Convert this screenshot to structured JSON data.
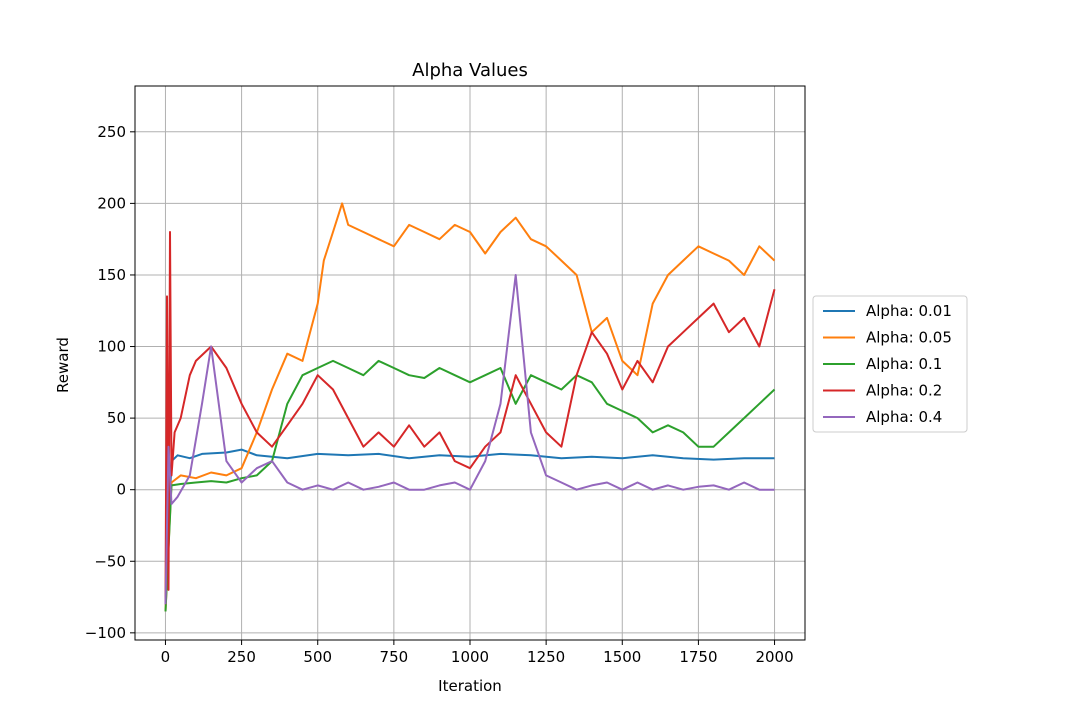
{
  "chart_data": {
    "type": "line",
    "title": "Alpha Values",
    "xlabel": "Iteration",
    "ylabel": "Reward",
    "xlim": [
      -100,
      2100
    ],
    "ylim": [
      -105,
      282
    ],
    "xticks": [
      0,
      250,
      500,
      750,
      1000,
      1250,
      1500,
      1750,
      2000
    ],
    "yticks": [
      -100,
      -50,
      0,
      50,
      100,
      150,
      200,
      250
    ],
    "ytick_labels": [
      "−100",
      "−50",
      "0",
      "50",
      "100",
      "150",
      "200",
      "250"
    ],
    "grid": true,
    "legend_position": "center-right outside",
    "series": [
      {
        "name": "Alpha: 0.01",
        "color": "#1f77b4",
        "x": [
          0,
          20,
          40,
          80,
          120,
          200,
          250,
          300,
          400,
          500,
          600,
          700,
          800,
          900,
          1000,
          1100,
          1200,
          1300,
          1400,
          1500,
          1600,
          1700,
          1800,
          1900,
          2000
        ],
        "y": [
          -80,
          20,
          24,
          22,
          25,
          26,
          28,
          24,
          22,
          25,
          24,
          25,
          22,
          24,
          23,
          25,
          24,
          22,
          23,
          22,
          24,
          22,
          21,
          22,
          22
        ]
      },
      {
        "name": "Alpha: 0.05",
        "color": "#ff7f0e",
        "x": [
          0,
          20,
          50,
          100,
          150,
          200,
          250,
          300,
          350,
          400,
          450,
          500,
          520,
          550,
          580,
          600,
          650,
          700,
          750,
          800,
          850,
          900,
          950,
          1000,
          1050,
          1100,
          1150,
          1200,
          1250,
          1300,
          1350,
          1400,
          1450,
          1500,
          1550,
          1600,
          1650,
          1700,
          1750,
          1800,
          1850,
          1900,
          1950,
          2000
        ],
        "y": [
          -85,
          5,
          10,
          8,
          12,
          10,
          15,
          40,
          70,
          95,
          90,
          130,
          160,
          180,
          200,
          185,
          180,
          175,
          170,
          185,
          180,
          175,
          185,
          180,
          165,
          180,
          190,
          175,
          170,
          160,
          150,
          110,
          120,
          90,
          80,
          130,
          150,
          160,
          170,
          165,
          160,
          150,
          170,
          160
        ]
      },
      {
        "name": "Alpha: 0.1",
        "color": "#2ca02c",
        "x": [
          0,
          20,
          50,
          100,
          150,
          200,
          250,
          300,
          350,
          400,
          450,
          500,
          550,
          600,
          650,
          700,
          750,
          800,
          850,
          900,
          950,
          1000,
          1050,
          1100,
          1150,
          1200,
          1250,
          1300,
          1350,
          1400,
          1450,
          1500,
          1550,
          1600,
          1650,
          1700,
          1750,
          1800,
          1850,
          1900,
          1950,
          2000
        ],
        "y": [
          -85,
          3,
          4,
          5,
          6,
          5,
          8,
          10,
          20,
          60,
          80,
          85,
          90,
          85,
          80,
          90,
          85,
          80,
          78,
          85,
          80,
          75,
          80,
          85,
          60,
          80,
          75,
          70,
          80,
          75,
          60,
          55,
          50,
          40,
          45,
          40,
          30,
          30,
          40,
          50,
          60,
          70
        ]
      },
      {
        "name": "Alpha: 0.2",
        "color": "#d62728",
        "x": [
          0,
          5,
          10,
          15,
          20,
          30,
          50,
          80,
          100,
          150,
          200,
          250,
          300,
          350,
          400,
          450,
          500,
          550,
          600,
          650,
          700,
          750,
          800,
          850,
          900,
          950,
          1000,
          1050,
          1100,
          1150,
          1200,
          1250,
          1300,
          1350,
          1400,
          1450,
          1500,
          1550,
          1600,
          1650,
          1700,
          1750,
          1800,
          1850,
          1900,
          1950,
          2000
        ],
        "y": [
          -80,
          135,
          -70,
          180,
          10,
          40,
          50,
          80,
          90,
          100,
          85,
          60,
          40,
          30,
          45,
          60,
          80,
          70,
          50,
          30,
          40,
          30,
          45,
          30,
          40,
          20,
          15,
          30,
          40,
          80,
          60,
          40,
          30,
          80,
          110,
          95,
          70,
          90,
          75,
          100,
          110,
          120,
          130,
          110,
          120,
          100,
          140
        ]
      },
      {
        "name": "Alpha: 0.4",
        "color": "#9467bd",
        "x": [
          0,
          10,
          20,
          40,
          80,
          120,
          150,
          200,
          250,
          300,
          350,
          400,
          450,
          500,
          550,
          600,
          650,
          700,
          750,
          800,
          850,
          900,
          950,
          1000,
          1050,
          1100,
          1150,
          1200,
          1250,
          1300,
          1350,
          1400,
          1450,
          1500,
          1550,
          1600,
          1650,
          1700,
          1750,
          1800,
          1850,
          1900,
          1950,
          2000
        ],
        "y": [
          -80,
          30,
          -10,
          -5,
          10,
          60,
          100,
          20,
          5,
          15,
          20,
          5,
          0,
          3,
          0,
          5,
          0,
          2,
          5,
          0,
          0,
          3,
          5,
          0,
          20,
          60,
          150,
          40,
          10,
          5,
          0,
          3,
          5,
          0,
          5,
          0,
          3,
          0,
          2,
          3,
          0,
          5,
          0,
          0
        ]
      }
    ]
  }
}
